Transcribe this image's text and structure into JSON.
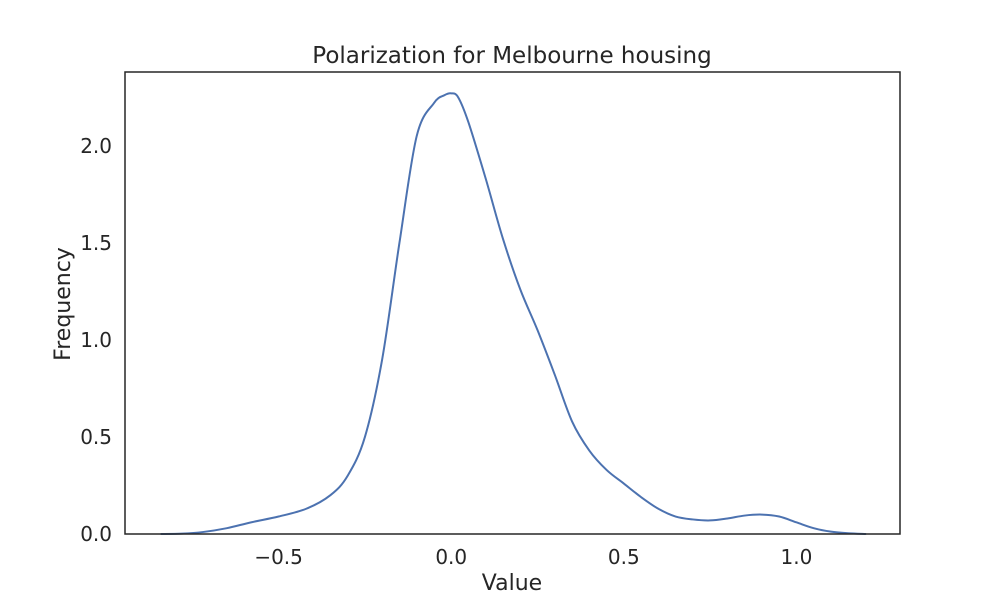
{
  "chart_data": {
    "type": "line",
    "title": "Polarization for Melbourne housing",
    "xlabel": "Value",
    "ylabel": "Frequency",
    "xlim": [
      -0.945,
      1.3
    ],
    "ylim": [
      0.0,
      2.38
    ],
    "x_ticks": [
      {
        "value": -0.5,
        "label": "−0.5"
      },
      {
        "value": 0.0,
        "label": "0.0"
      },
      {
        "value": 0.5,
        "label": "0.5"
      },
      {
        "value": 1.0,
        "label": "1.0"
      }
    ],
    "y_ticks": [
      {
        "value": 0.0,
        "label": "0.0"
      },
      {
        "value": 0.5,
        "label": "0.5"
      },
      {
        "value": 1.0,
        "label": "1.0"
      },
      {
        "value": 1.5,
        "label": "1.5"
      },
      {
        "value": 2.0,
        "label": "2.0"
      }
    ],
    "grid": false,
    "line_color": "#4c72b0",
    "series": [
      {
        "x": [
          -0.84,
          -0.78,
          -0.72,
          -0.65,
          -0.58,
          -0.5,
          -0.42,
          -0.35,
          -0.3,
          -0.25,
          -0.2,
          -0.15,
          -0.1,
          -0.05,
          -0.02,
          0.0,
          0.02,
          0.05,
          0.1,
          0.15,
          0.2,
          0.25,
          0.3,
          0.35,
          0.4,
          0.45,
          0.5,
          0.55,
          0.6,
          0.65,
          0.7,
          0.75,
          0.8,
          0.85,
          0.9,
          0.95,
          1.0,
          1.05,
          1.1,
          1.15,
          1.2
        ],
        "y": [
          0.0,
          0.002,
          0.01,
          0.03,
          0.06,
          0.09,
          0.13,
          0.2,
          0.3,
          0.5,
          0.9,
          1.5,
          2.05,
          2.22,
          2.26,
          2.27,
          2.25,
          2.12,
          1.83,
          1.52,
          1.26,
          1.05,
          0.82,
          0.58,
          0.43,
          0.33,
          0.26,
          0.19,
          0.13,
          0.09,
          0.075,
          0.07,
          0.08,
          0.095,
          0.1,
          0.09,
          0.06,
          0.03,
          0.012,
          0.004,
          0.0
        ]
      }
    ]
  }
}
